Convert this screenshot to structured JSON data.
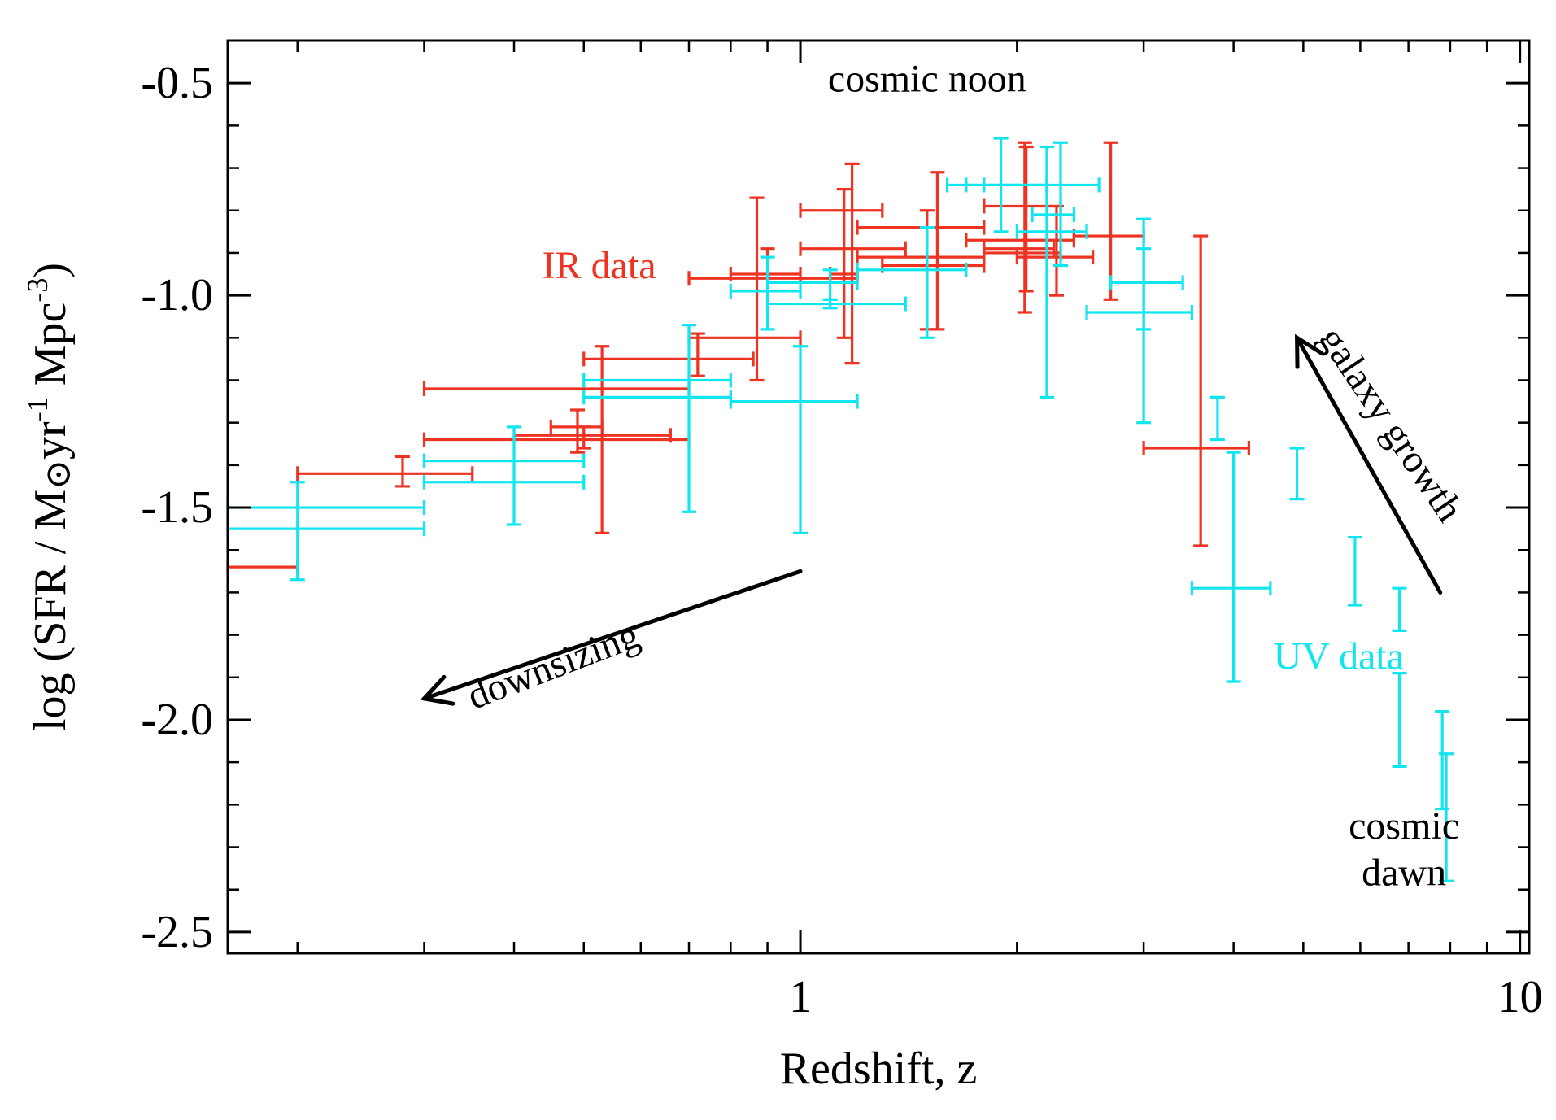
{
  "chart_data": {
    "type": "scatter",
    "title": "",
    "xlabel": "Redshift, z",
    "ylabel_parts": {
      "prefix": "log (SFR / M",
      "sun": "⊙",
      "yr": "yr",
      "exp1": "-1",
      "mpc": " Mpc",
      "exp2": "-3",
      "suffix": ")"
    },
    "xscale": "log",
    "xlim": [
      0.16,
      10.3
    ],
    "ylim": [
      -2.55,
      -0.4
    ],
    "xticks": [
      {
        "value": 1,
        "label": "1"
      },
      {
        "value": 10,
        "label": "10"
      }
    ],
    "yticks": [
      {
        "value": -0.5,
        "label": "-0.5"
      },
      {
        "value": -1.0,
        "label": "-1.0"
      },
      {
        "value": -1.5,
        "label": "-1.5"
      },
      {
        "value": -2.0,
        "label": "-2.0"
      },
      {
        "value": -2.5,
        "label": "-2.5"
      }
    ],
    "series": [
      {
        "name": "IR data",
        "color": "#ee3322",
        "points": [
          {
            "x": 0.2,
            "xlo": 0.16,
            "xhi": 0.2,
            "y": -1.64,
            "ylo": -1.64,
            "yhi": -1.64
          },
          {
            "x": 0.28,
            "xlo": 0.2,
            "xhi": 0.35,
            "y": -1.42,
            "ylo": -1.45,
            "yhi": -1.38
          },
          {
            "x": 0.53,
            "xlo": 0.3,
            "xhi": 0.7,
            "y": -1.22,
            "ylo": -1.22,
            "yhi": -1.22
          },
          {
            "x": 0.53,
            "xlo": 0.4,
            "xhi": 0.66,
            "y": -1.33,
            "ylo": -1.56,
            "yhi": -1.12
          },
          {
            "x": 0.5,
            "xlo": 0.3,
            "xhi": 0.7,
            "y": -1.34,
            "ylo": -1.36,
            "yhi": -1.31
          },
          {
            "x": 0.49,
            "xlo": 0.45,
            "xhi": 0.53,
            "y": -1.31,
            "ylo": -1.37,
            "yhi": -1.27
          },
          {
            "x": 0.72,
            "xlo": 0.5,
            "xhi": 0.86,
            "y": -1.15,
            "ylo": -1.19,
            "yhi": -1.09
          },
          {
            "x": 0.87,
            "xlo": 0.7,
            "xhi": 1.0,
            "y": -1.1,
            "ylo": -1.2,
            "yhi": -0.77
          },
          {
            "x": 0.92,
            "xlo": 0.7,
            "xhi": 1.2,
            "y": -0.96,
            "ylo": -0.96,
            "yhi": -0.96
          },
          {
            "x": 0.9,
            "xlo": 0.8,
            "xhi": 1.0,
            "y": -0.95,
            "ylo": -0.99,
            "yhi": -0.89
          },
          {
            "x": 1.15,
            "xlo": 1.0,
            "xhi": 1.3,
            "y": -0.8,
            "ylo": -0.8,
            "yhi": -0.8
          },
          {
            "x": 1.18,
            "xlo": 1.0,
            "xhi": 1.4,
            "y": -0.89,
            "ylo": -1.16,
            "yhi": -0.69
          },
          {
            "x": 1.15,
            "xlo": 1.1,
            "xhi": 1.2,
            "y": -0.95,
            "ylo": -1.1,
            "yhi": -0.75
          },
          {
            "x": 1.5,
            "xlo": 1.2,
            "xhi": 1.8,
            "y": -0.84,
            "ylo": -0.84,
            "yhi": -0.84
          },
          {
            "x": 1.5,
            "xlo": 1.2,
            "xhi": 1.8,
            "y": -0.91,
            "ylo": -1.08,
            "yhi": -0.8
          },
          {
            "x": 1.55,
            "xlo": 1.3,
            "xhi": 1.8,
            "y": -0.93,
            "ylo": -1.08,
            "yhi": -0.71
          },
          {
            "x": 2.05,
            "xlo": 1.8,
            "xhi": 2.3,
            "y": -0.79,
            "ylo": -0.79,
            "yhi": -0.79
          },
          {
            "x": 2.05,
            "xlo": 1.7,
            "xhi": 2.4,
            "y": -0.87,
            "ylo": -0.87,
            "yhi": -0.87
          },
          {
            "x": 2.05,
            "xlo": 1.8,
            "xhi": 2.25,
            "y": -0.89,
            "ylo": -1.04,
            "yhi": -0.64
          },
          {
            "x": 2.06,
            "xlo": 1.8,
            "xhi": 2.3,
            "y": -0.9,
            "ylo": -0.99,
            "yhi": -0.65
          },
          {
            "x": 2.27,
            "xlo": 2.0,
            "xhi": 2.55,
            "y": -0.91,
            "ylo": -1.0,
            "yhi": -0.79
          },
          {
            "x": 2.7,
            "xlo": 2.4,
            "xhi": 3.0,
            "y": -0.86,
            "ylo": -1.01,
            "yhi": -0.64
          },
          {
            "x": 3.6,
            "xlo": 3.0,
            "xhi": 4.2,
            "y": -1.36,
            "ylo": -1.59,
            "yhi": -0.86
          }
        ]
      },
      {
        "name": "UV data",
        "color": "#11e6ee",
        "points": [
          {
            "x": 0.2,
            "xlo": 0.16,
            "xhi": 0.3,
            "y": -1.5,
            "ylo": -1.5,
            "yhi": -1.5
          },
          {
            "x": 0.2,
            "xlo": 0.16,
            "xhi": 0.3,
            "y": -1.55,
            "ylo": -1.67,
            "yhi": -1.44
          },
          {
            "x": 0.4,
            "xlo": 0.3,
            "xhi": 0.5,
            "y": -1.39,
            "ylo": -1.39,
            "yhi": -1.39
          },
          {
            "x": 0.4,
            "xlo": 0.3,
            "xhi": 0.5,
            "y": -1.44,
            "ylo": -1.54,
            "yhi": -1.31
          },
          {
            "x": 0.7,
            "xlo": 0.5,
            "xhi": 0.8,
            "y": -1.2,
            "ylo": -1.2,
            "yhi": -1.2
          },
          {
            "x": 0.7,
            "xlo": 0.5,
            "xhi": 0.8,
            "y": -1.24,
            "ylo": -1.51,
            "yhi": -1.07
          },
          {
            "x": 1.0,
            "xlo": 0.8,
            "xhi": 1.2,
            "y": -1.25,
            "ylo": -1.56,
            "yhi": -1.12
          },
          {
            "x": 0.9,
            "xlo": 0.8,
            "xhi": 1.0,
            "y": -0.99,
            "ylo": -1.08,
            "yhi": -0.91
          },
          {
            "x": 1.1,
            "xlo": 0.9,
            "xhi": 1.4,
            "y": -1.02,
            "ylo": -1.03,
            "yhi": -1.01
          },
          {
            "x": 1.1,
            "xlo": 0.9,
            "xhi": 1.2,
            "y": -0.97,
            "ylo": -1.01,
            "yhi": -0.94
          },
          {
            "x": 1.5,
            "xlo": 1.2,
            "xhi": 1.7,
            "y": -0.94,
            "ylo": -1.1,
            "yhi": -0.84
          },
          {
            "x": 1.9,
            "xlo": 1.6,
            "xhi": 2.2,
            "y": -0.74,
            "ylo": -0.74,
            "yhi": -0.74
          },
          {
            "x": 1.9,
            "xlo": 1.7,
            "xhi": 2.2,
            "y": -0.74,
            "ylo": -0.85,
            "yhi": -0.63
          },
          {
            "x": 2.2,
            "xlo": 1.8,
            "xhi": 2.6,
            "y": -0.74,
            "ylo": -1.24,
            "yhi": -0.65
          },
          {
            "x": 2.3,
            "xlo": 2.0,
            "xhi": 2.5,
            "y": -0.85,
            "ylo": -0.85,
            "yhi": -0.85
          },
          {
            "x": 2.3,
            "xlo": 2.1,
            "xhi": 2.4,
            "y": -0.81,
            "ylo": -0.93,
            "yhi": -0.64
          },
          {
            "x": 3.0,
            "xlo": 2.7,
            "xhi": 3.4,
            "y": -0.97,
            "ylo": -1.08,
            "yhi": -0.89
          },
          {
            "x": 3.0,
            "xlo": 2.5,
            "xhi": 3.5,
            "y": -1.04,
            "ylo": -1.3,
            "yhi": -0.82
          },
          {
            "x": 3.8,
            "xlo": 3.8,
            "xhi": 3.8,
            "y": -1.29,
            "ylo": -1.34,
            "yhi": -1.24
          },
          {
            "x": 4.0,
            "xlo": 3.5,
            "xhi": 4.5,
            "y": -1.69,
            "ylo": -1.91,
            "yhi": -1.37
          },
          {
            "x": 4.9,
            "xlo": 4.9,
            "xhi": 4.9,
            "y": -1.42,
            "ylo": -1.48,
            "yhi": -1.36
          },
          {
            "x": 5.9,
            "xlo": 5.9,
            "xhi": 5.9,
            "y": -1.65,
            "ylo": -1.73,
            "yhi": -1.57
          },
          {
            "x": 6.8,
            "xlo": 6.8,
            "xhi": 6.8,
            "y": -1.79,
            "ylo": -1.79,
            "yhi": -1.69
          },
          {
            "x": 6.8,
            "xlo": 6.8,
            "xhi": 6.8,
            "y": -1.89,
            "ylo": -1.89,
            "yhi": -1.89
          },
          {
            "x": 6.8,
            "xlo": 6.8,
            "xhi": 6.8,
            "y": -2.0,
            "ylo": -2.11,
            "yhi": -1.89
          },
          {
            "x": 7.8,
            "xlo": 7.8,
            "xhi": 7.8,
            "y": -2.1,
            "ylo": -2.21,
            "yhi": -1.98
          },
          {
            "x": 7.9,
            "xlo": 7.9,
            "xhi": 7.9,
            "y": -2.22,
            "ylo": -2.38,
            "yhi": -2.08
          }
        ]
      }
    ],
    "annotations": [
      {
        "id": "cosmic-noon",
        "text": "cosmic noon",
        "x": 1.5,
        "y": -0.52,
        "color": "#000000",
        "anchor": "middle",
        "rotate": 0
      },
      {
        "id": "ir-label",
        "text": "IR data",
        "x": 0.63,
        "y": -0.96,
        "color": "#ee3322",
        "anchor": "end",
        "rotate": 0
      },
      {
        "id": "uv-label",
        "text": "UV data",
        "x": 5.6,
        "y": -1.88,
        "color": "#11e6ee",
        "anchor": "middle",
        "rotate": 0
      },
      {
        "id": "downsizing",
        "text": "downsizing",
        "x": 0.46,
        "y": -1.9,
        "color": "#000000",
        "anchor": "middle",
        "rotate": -21
      },
      {
        "id": "galaxy-growth",
        "text": "galaxy growth",
        "x": 6.4,
        "y": -1.32,
        "color": "#000000",
        "anchor": "middle",
        "rotate": 56
      },
      {
        "id": "cosmic-dawn-1",
        "text": "cosmic",
        "x": 6.9,
        "y": -2.28,
        "color": "#000000",
        "anchor": "middle",
        "rotate": 0
      },
      {
        "id": "cosmic-dawn-2",
        "text": "dawn",
        "x": 6.9,
        "y": -2.39,
        "color": "#000000",
        "anchor": "middle",
        "rotate": 0
      }
    ],
    "arrows": [
      {
        "id": "downsizing-arrow",
        "from": {
          "x": 1.0,
          "y": -1.65
        },
        "to": {
          "x": 0.3,
          "y": -1.95
        }
      },
      {
        "id": "galaxy-growth-arrow",
        "from": {
          "x": 7.75,
          "y": -1.7
        },
        "to": {
          "x": 4.9,
          "y": -1.1
        }
      }
    ]
  }
}
